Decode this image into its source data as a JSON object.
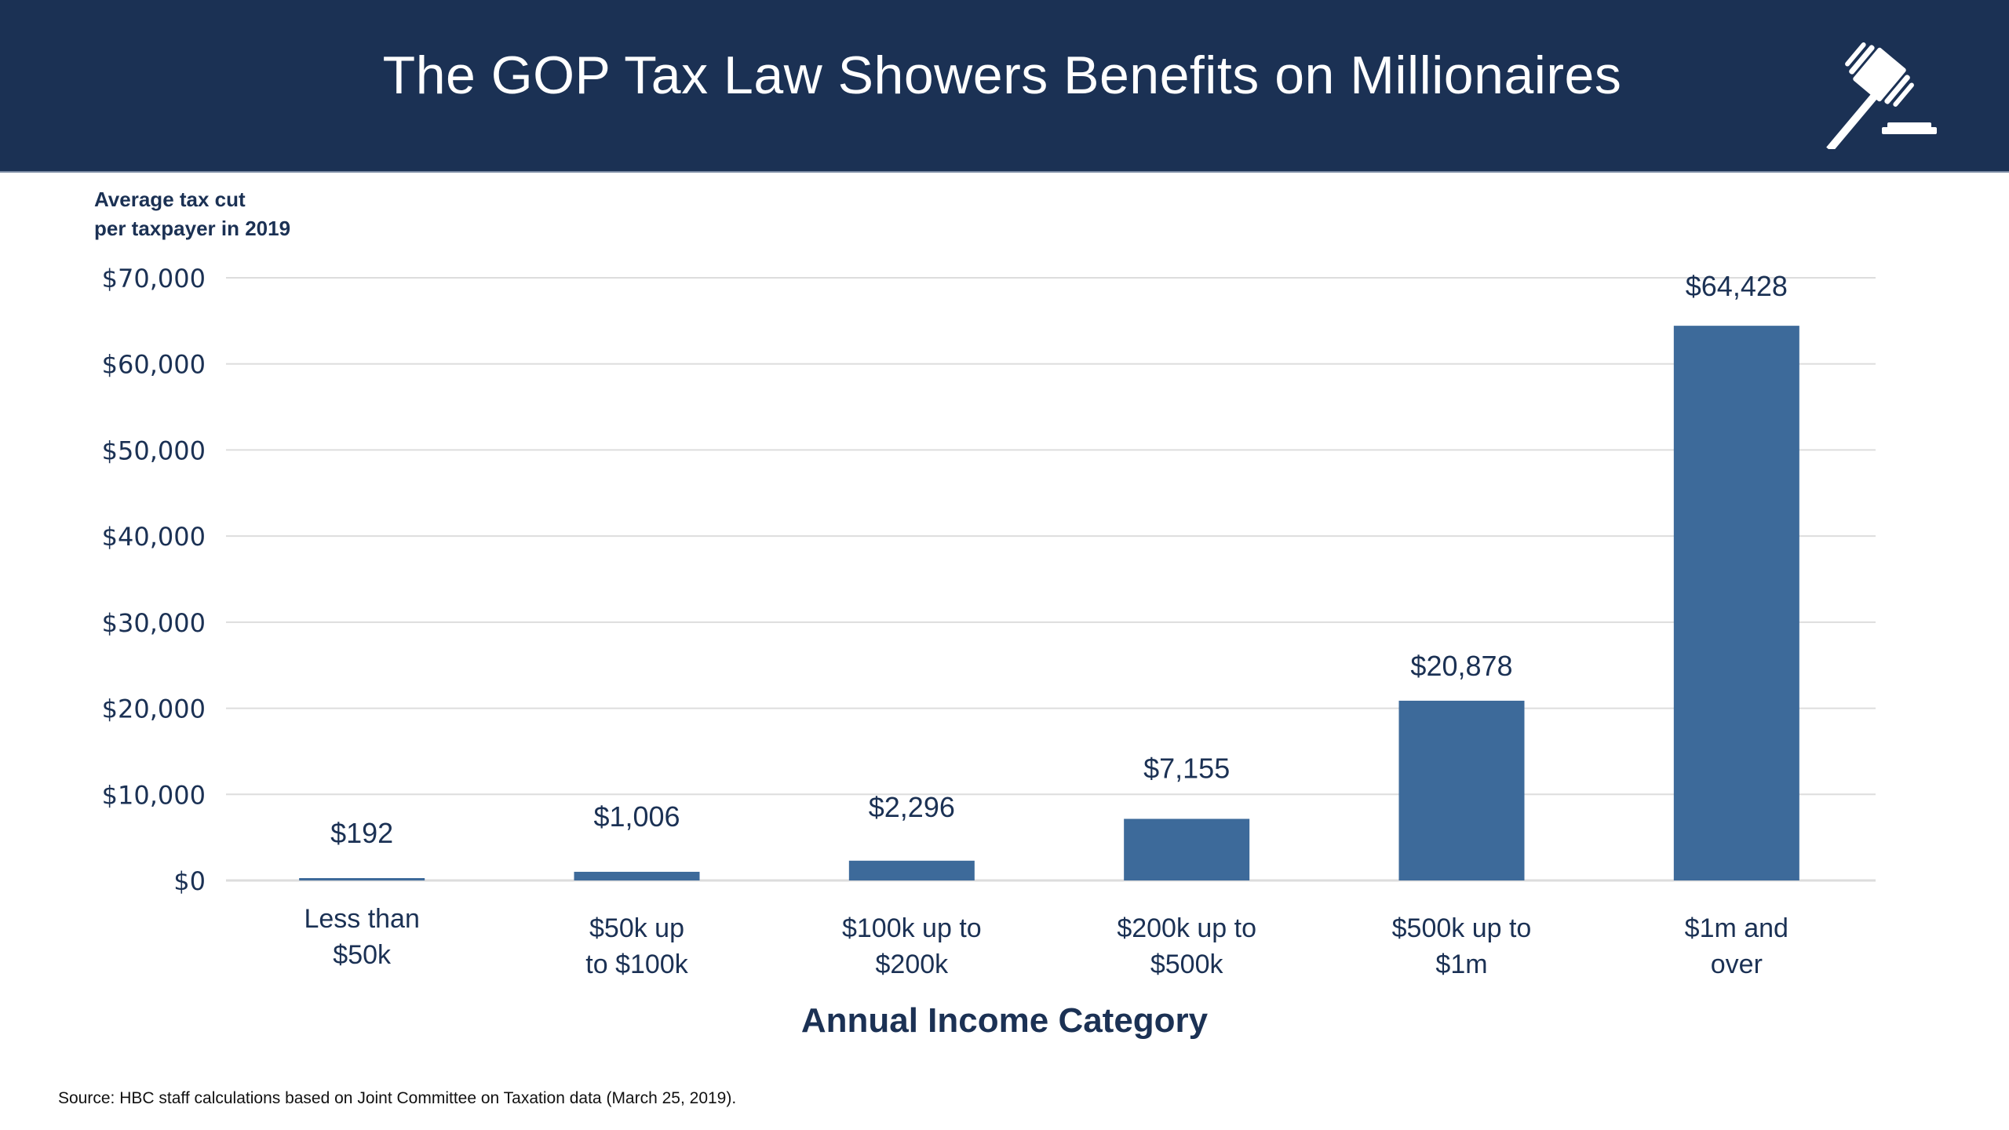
{
  "header": {
    "title": "The GOP Tax Law Showers Benefits on Millionaires",
    "icon": "gavel-icon",
    "background_color": "#1b3154"
  },
  "chart_data": {
    "type": "bar",
    "title": "The GOP Tax Law Showers Benefits on Millionaires",
    "ylabel": "Average tax cut per taxpayer in 2019",
    "ylabel_lines": [
      "Average tax cut",
      "per taxpayer in 2019"
    ],
    "xlabel": "Annual Income Category",
    "categories": [
      "Less than $50k",
      "$50k up to $100k",
      "$100k up to $200k",
      "$200k up to $500k",
      "$500k up to $1m",
      "$1m and over"
    ],
    "category_lines": [
      [
        "Less than",
        "$50k"
      ],
      [
        "$50k up",
        "to $100k"
      ],
      [
        "$100k up to",
        "$200k"
      ],
      [
        "$200k up to",
        "$500k"
      ],
      [
        "$500k up to",
        "$1m"
      ],
      [
        "$1m and",
        "over"
      ]
    ],
    "values": [
      192,
      1006,
      2296,
      7155,
      20878,
      64428
    ],
    "data_labels": [
      "$192",
      "$1,006",
      "$2,296",
      "$7,155",
      "$20,878",
      "$64,428"
    ],
    "ylim": [
      0,
      70000
    ],
    "yticks": [
      0,
      10000,
      20000,
      30000,
      40000,
      50000,
      60000,
      70000
    ],
    "ytick_labels": [
      "$0",
      "$10,000",
      "$20,000",
      "$30,000",
      "$40,000",
      "$50,000",
      "$60,000",
      "$70,000"
    ],
    "grid": true,
    "legend": "none",
    "bar_color": "#3d6a9a",
    "text_color": "#1b3154",
    "grid_color": "#dddddd"
  },
  "source": "Source: HBC staff calculations based on Joint Committee on Taxation data (March 25, 2019)."
}
